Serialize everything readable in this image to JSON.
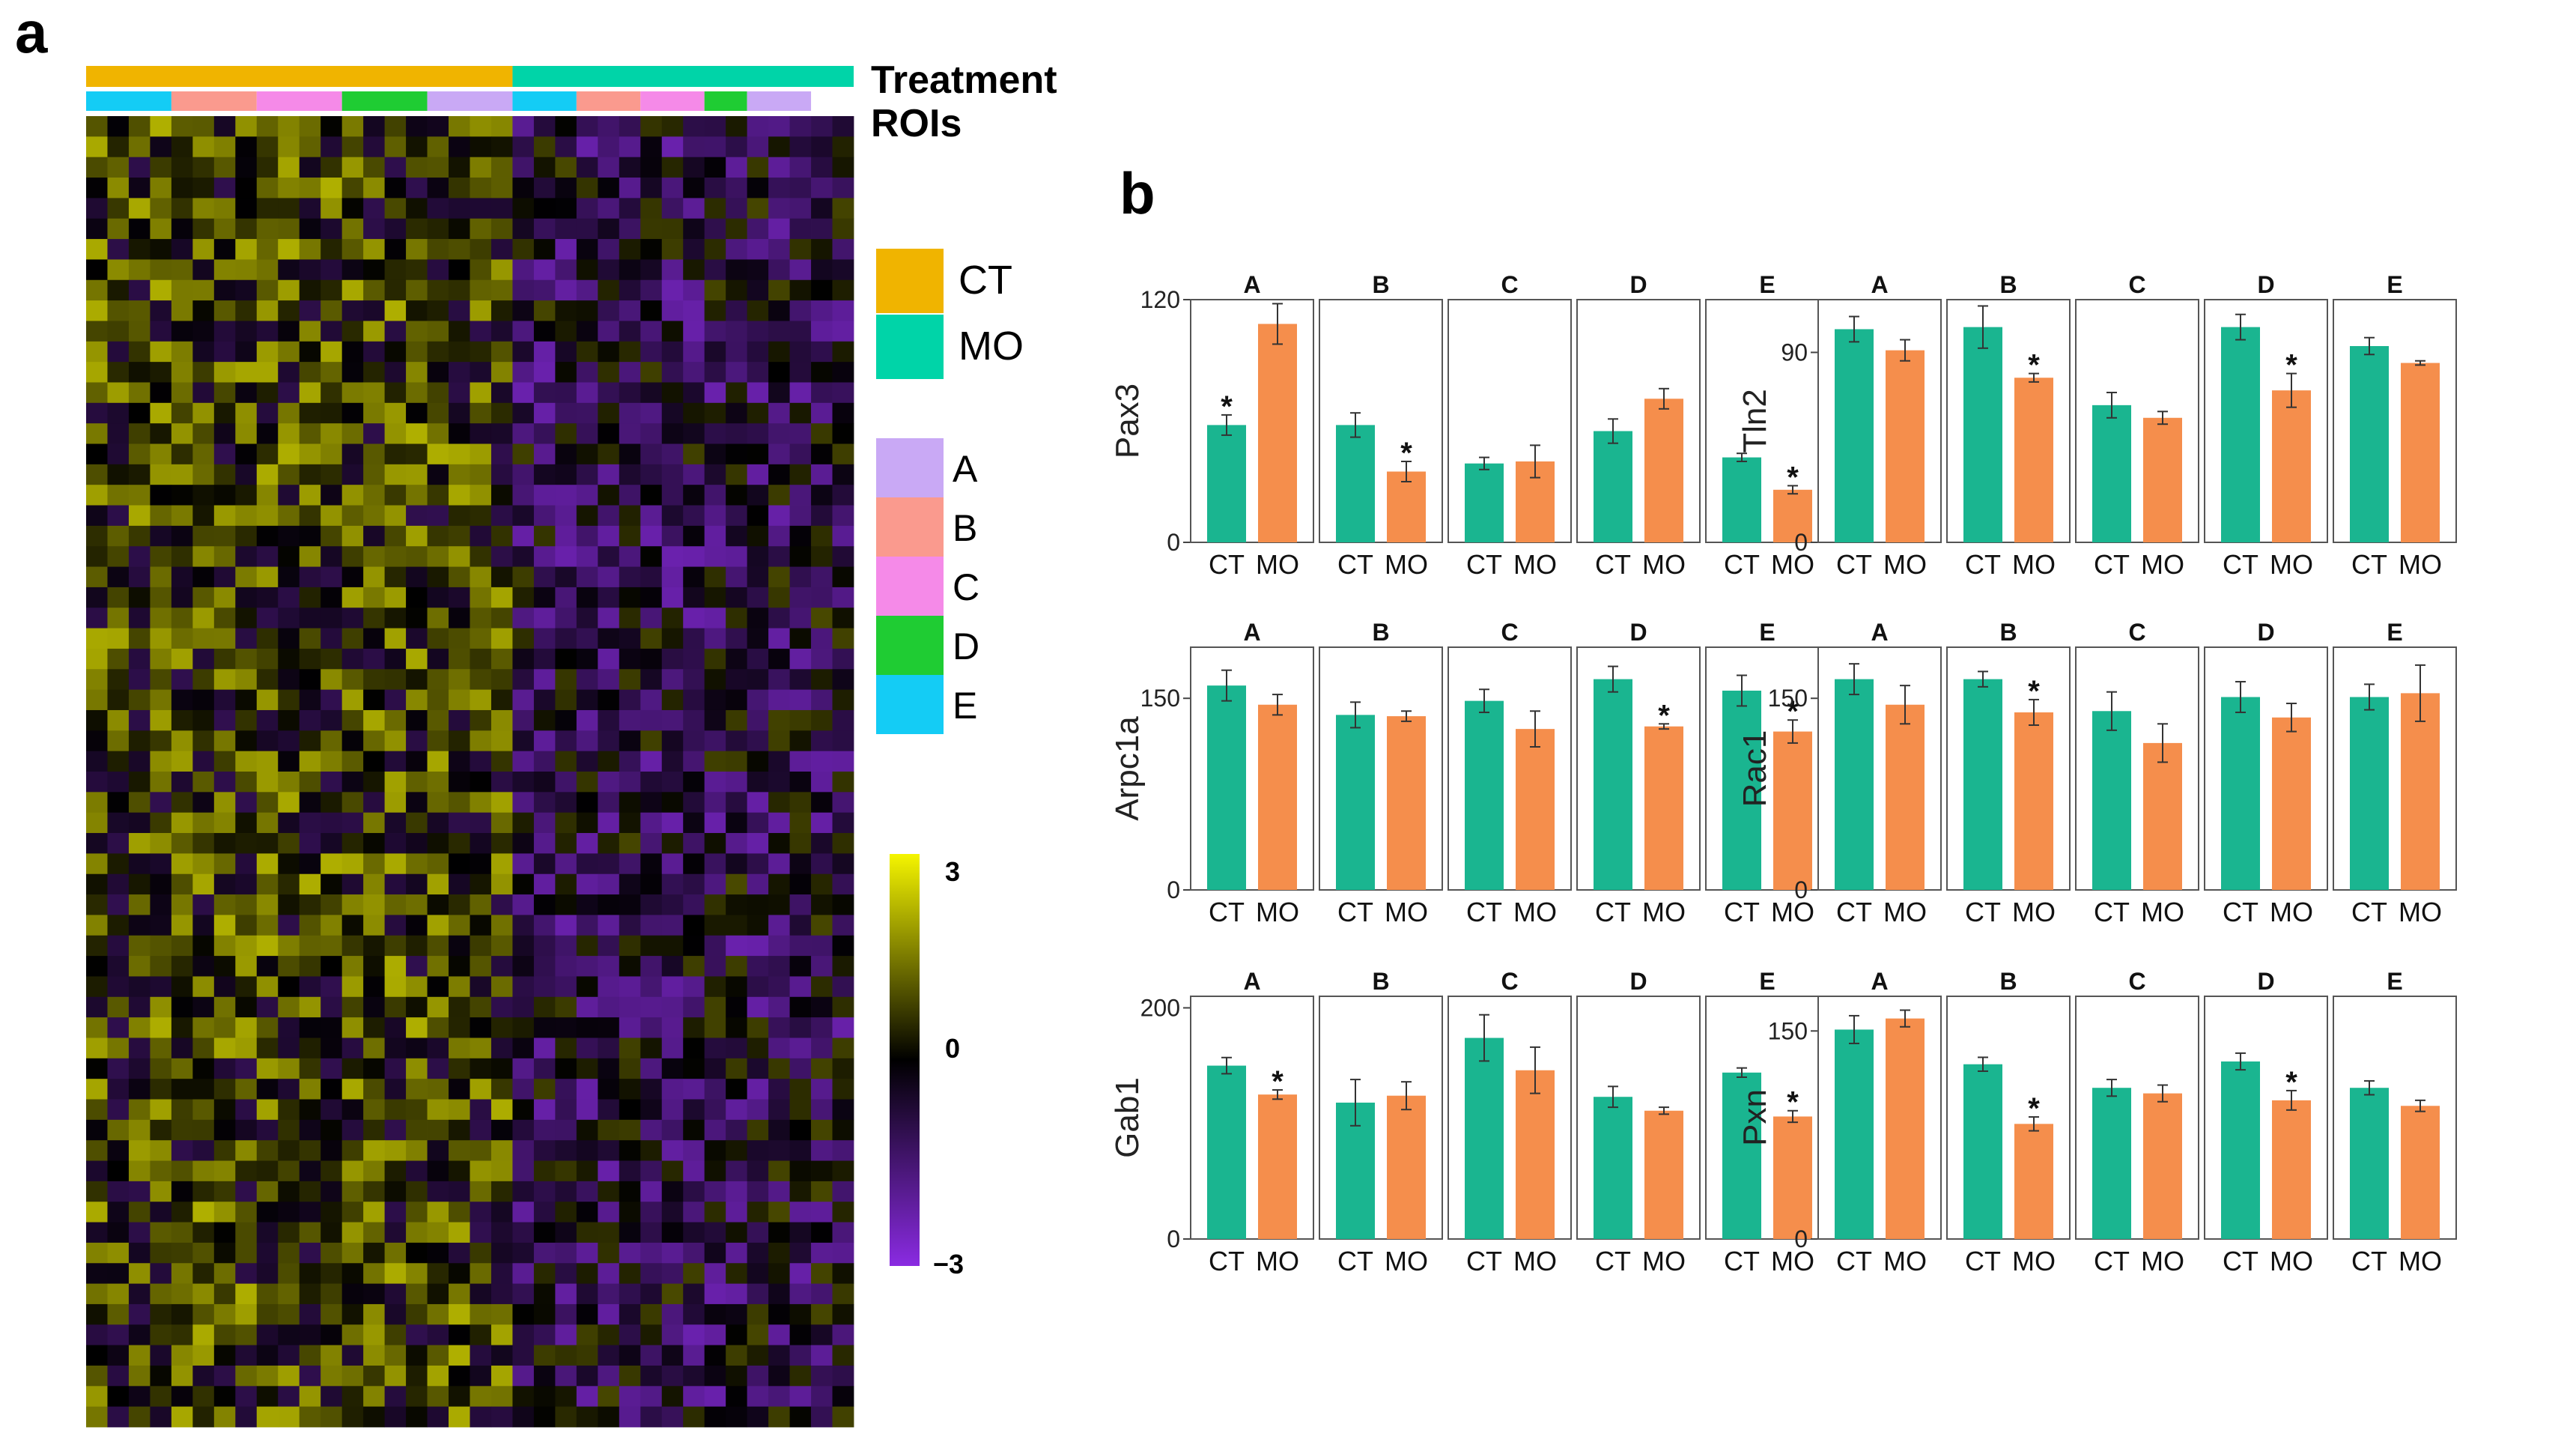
{
  "panel_labels": {
    "a": "a",
    "b": "b"
  },
  "heatmap": {
    "track_labels": [
      "Treatment",
      "ROIs"
    ],
    "legend_treatment": [
      {
        "label": "CT",
        "color": "#F0B400"
      },
      {
        "label": "MO",
        "color": "#00D4A8"
      }
    ],
    "legend_rois": [
      {
        "label": "A",
        "color": "#C9A9F5"
      },
      {
        "label": "B",
        "color": "#FA9A8E"
      },
      {
        "label": "C",
        "color": "#F58AE8"
      },
      {
        "label": "D",
        "color": "#1FCC33"
      },
      {
        "label": "E",
        "color": "#14CCF5"
      }
    ],
    "colorbar": {
      "max_label": "3",
      "mid_label": "0",
      "min_label": "−3"
    }
  },
  "chart_data": {
    "type": "bar",
    "x_tick_labels": [
      "CT",
      "MO"
    ],
    "series_colors": {
      "CT": "#1AB590",
      "MO": "#F58E4C"
    },
    "panels": [
      {
        "gene": "Pax3",
        "ylim": [
          0,
          120
        ],
        "yticks": [
          0,
          120
        ],
        "facets": [
          {
            "roi": "A",
            "CT": 58,
            "MO": 108,
            "CT_err": 5,
            "MO_err": 10,
            "sig": true
          },
          {
            "roi": "B",
            "CT": 58,
            "MO": 35,
            "CT_err": 6,
            "MO_err": 5,
            "sig": true
          },
          {
            "roi": "C",
            "CT": 39,
            "MO": 40,
            "CT_err": 3,
            "MO_err": 8,
            "sig": false
          },
          {
            "roi": "D",
            "CT": 55,
            "MO": 71,
            "CT_err": 6,
            "MO_err": 5,
            "sig": false
          },
          {
            "roi": "E",
            "CT": 42,
            "MO": 26,
            "CT_err": 2,
            "MO_err": 2,
            "sig": true
          }
        ]
      },
      {
        "gene": "Tln2",
        "ylim": [
          0,
          115
        ],
        "yticks": [
          0,
          90
        ],
        "facets": [
          {
            "roi": "A",
            "CT": 101,
            "MO": 91,
            "CT_err": 6,
            "MO_err": 5,
            "sig": false
          },
          {
            "roi": "B",
            "CT": 102,
            "MO": 78,
            "CT_err": 10,
            "MO_err": 2,
            "sig": true
          },
          {
            "roi": "C",
            "CT": 65,
            "MO": 59,
            "CT_err": 6,
            "MO_err": 3,
            "sig": false
          },
          {
            "roi": "D",
            "CT": 102,
            "MO": 72,
            "CT_err": 6,
            "MO_err": 8,
            "sig": true
          },
          {
            "roi": "E",
            "CT": 93,
            "MO": 85,
            "CT_err": 4,
            "MO_err": 1,
            "sig": false
          }
        ]
      },
      {
        "gene": "Arpc1a",
        "ylim": [
          0,
          190
        ],
        "yticks": [
          0,
          150
        ],
        "facets": [
          {
            "roi": "A",
            "CT": 160,
            "MO": 145,
            "CT_err": 12,
            "MO_err": 8,
            "sig": false
          },
          {
            "roi": "B",
            "CT": 137,
            "MO": 136,
            "CT_err": 10,
            "MO_err": 4,
            "sig": false
          },
          {
            "roi": "C",
            "CT": 148,
            "MO": 126,
            "CT_err": 9,
            "MO_err": 14,
            "sig": false
          },
          {
            "roi": "D",
            "CT": 165,
            "MO": 128,
            "CT_err": 10,
            "MO_err": 2,
            "sig": true
          },
          {
            "roi": "E",
            "CT": 156,
            "MO": 124,
            "CT_err": 12,
            "MO_err": 9,
            "sig": true
          }
        ]
      },
      {
        "gene": "Rac1",
        "ylim": [
          0,
          190
        ],
        "yticks": [
          0,
          150
        ],
        "facets": [
          {
            "roi": "A",
            "CT": 165,
            "MO": 145,
            "CT_err": 12,
            "MO_err": 15,
            "sig": false
          },
          {
            "roi": "B",
            "CT": 165,
            "MO": 139,
            "CT_err": 6,
            "MO_err": 10,
            "sig": true
          },
          {
            "roi": "C",
            "CT": 140,
            "MO": 115,
            "CT_err": 15,
            "MO_err": 15,
            "sig": false
          },
          {
            "roi": "D",
            "CT": 151,
            "MO": 135,
            "CT_err": 12,
            "MO_err": 11,
            "sig": false
          },
          {
            "roi": "E",
            "CT": 151,
            "MO": 154,
            "CT_err": 10,
            "MO_err": 22,
            "sig": false
          }
        ]
      },
      {
        "gene": "Gab1",
        "ylim": [
          0,
          210
        ],
        "yticks": [
          0,
          200
        ],
        "facets": [
          {
            "roi": "A",
            "CT": 150,
            "MO": 125,
            "CT_err": 7,
            "MO_err": 4,
            "sig": true
          },
          {
            "roi": "B",
            "CT": 118,
            "MO": 124,
            "CT_err": 20,
            "MO_err": 12,
            "sig": false
          },
          {
            "roi": "C",
            "CT": 174,
            "MO": 146,
            "CT_err": 20,
            "MO_err": 20,
            "sig": false
          },
          {
            "roi": "D",
            "CT": 123,
            "MO": 111,
            "CT_err": 9,
            "MO_err": 3,
            "sig": false
          },
          {
            "roi": "E",
            "CT": 144,
            "MO": 106,
            "CT_err": 4,
            "MO_err": 5,
            "sig": true
          }
        ]
      },
      {
        "gene": "Pxn",
        "ylim": [
          0,
          175
        ],
        "yticks": [
          0,
          150
        ],
        "facets": [
          {
            "roi": "A",
            "CT": 151,
            "MO": 159,
            "CT_err": 10,
            "MO_err": 6,
            "sig": false
          },
          {
            "roi": "B",
            "CT": 126,
            "MO": 83,
            "CT_err": 5,
            "MO_err": 5,
            "sig": true
          },
          {
            "roi": "C",
            "CT": 109,
            "MO": 105,
            "CT_err": 6,
            "MO_err": 6,
            "sig": false
          },
          {
            "roi": "D",
            "CT": 128,
            "MO": 100,
            "CT_err": 6,
            "MO_err": 7,
            "sig": true
          },
          {
            "roi": "E",
            "CT": 109,
            "MO": 96,
            "CT_err": 5,
            "MO_err": 4,
            "sig": false
          }
        ]
      }
    ]
  }
}
